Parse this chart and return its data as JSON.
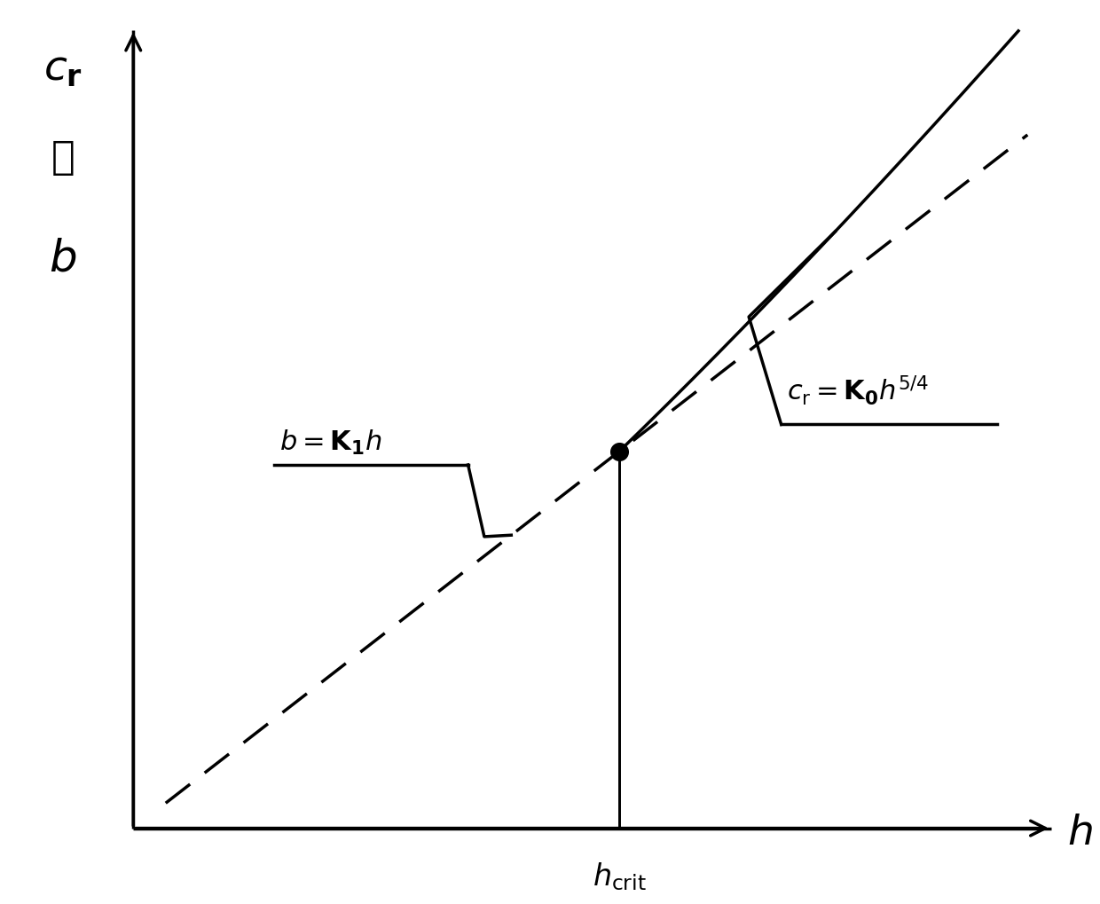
{
  "background_color": "#ffffff",
  "x_range": [
    0,
    10
  ],
  "y_range": [
    0,
    10
  ],
  "h_crit_x": 4.5,
  "y_crit": 4.2,
  "ylabel_cr": "$c_{\\mathbf{r}}$",
  "ylabel_or": "或",
  "ylabel_b": "$b$",
  "xlabel": "$h$",
  "hcrit_label": "$h_{\\mathrm{crit}}$",
  "eq_cr": "$c_{\\mathrm{r}} = \\mathbf{K}_\\mathbf{0} h^{5/4}$",
  "eq_b": "$b = \\mathbf{K}_{\\mathbf{1}} h$",
  "line_color": "#000000",
  "linewidth": 2.5
}
